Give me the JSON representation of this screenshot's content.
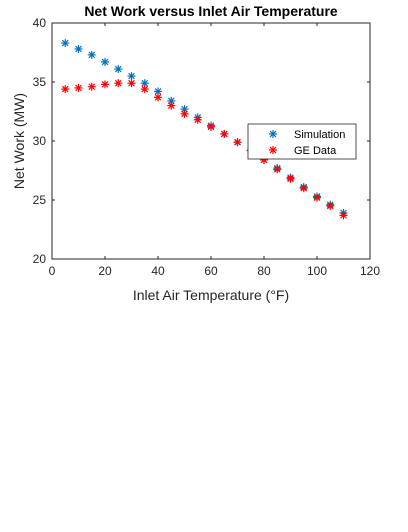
{
  "chart_data": {
    "type": "scatter",
    "title": "Net Work versus Inlet Air Temperature",
    "xlabel": "Inlet Air Temperature (°F)",
    "ylabel": "Net Work (MW)",
    "xlim": [
      0,
      120
    ],
    "ylim": [
      20,
      40
    ],
    "xticks": [
      0,
      20,
      40,
      60,
      80,
      100,
      120
    ],
    "yticks": [
      20,
      25,
      30,
      35,
      40
    ],
    "grid": false,
    "legend_position": "right",
    "series": [
      {
        "name": "Simulation",
        "color": "#0072BD",
        "marker": "asterisk",
        "x": [
          5,
          10,
          15,
          20,
          25,
          30,
          35,
          40,
          45,
          50,
          55,
          60,
          65,
          70,
          75,
          80,
          85,
          90,
          95,
          100,
          105,
          110
        ],
        "y": [
          38.3,
          37.8,
          37.3,
          36.7,
          36.1,
          35.5,
          34.9,
          34.2,
          33.4,
          32.7,
          32.0,
          31.3,
          30.6,
          29.9,
          29.2,
          28.4,
          27.7,
          26.9,
          26.1,
          25.3,
          24.6,
          23.9
        ]
      },
      {
        "name": "GE Data",
        "color": "#FF0000",
        "marker": "asterisk",
        "x": [
          5,
          10,
          15,
          20,
          25,
          30,
          35,
          40,
          45,
          50,
          55,
          60,
          65,
          70,
          75,
          80,
          85,
          90,
          95,
          100,
          105,
          110
        ],
        "y": [
          34.4,
          34.5,
          34.6,
          34.8,
          34.9,
          34.9,
          34.4,
          33.7,
          33.0,
          32.3,
          31.8,
          31.2,
          30.6,
          29.9,
          29.2,
          28.4,
          27.6,
          26.8,
          26.0,
          25.2,
          24.5,
          23.7
        ]
      }
    ]
  }
}
